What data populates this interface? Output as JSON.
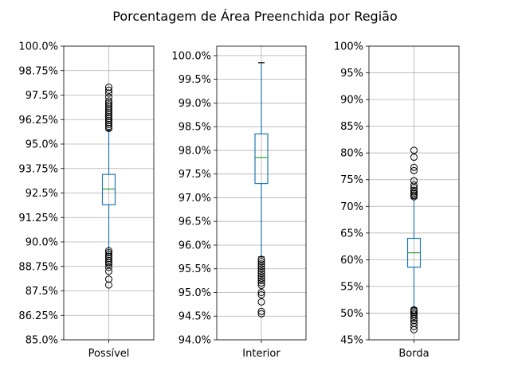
{
  "chart_data": {
    "title": "Porcentagem de Área Preenchida por Região",
    "colors": {
      "box": "#1f77b4",
      "median": "#2ca02c",
      "flier": "#000000",
      "grid": "#b0b0b0"
    },
    "grid": true,
    "panels": [
      {
        "type": "box",
        "category": "Possível",
        "ylim": [
          85.0,
          100.0
        ],
        "yticks": [
          85.0,
          86.25,
          87.5,
          88.75,
          90.0,
          91.25,
          92.5,
          93.75,
          95.0,
          96.25,
          97.5,
          98.75,
          100.0
        ],
        "yticklabels": [
          "85.0%",
          "86.25%",
          "87.5%",
          "88.75%",
          "90.0%",
          "91.25%",
          "92.5%",
          "93.75%",
          "95.0%",
          "96.25%",
          "97.5%",
          "98.75%",
          "100.0%"
        ],
        "whisker_low": 89.4,
        "q1": 91.9,
        "median": 92.7,
        "q3": 93.45,
        "whisker_high": 95.7,
        "fliers": [
          87.8,
          88.1,
          88.5,
          88.7,
          88.85,
          88.95,
          89.05,
          89.15,
          89.25,
          89.35,
          89.45,
          89.55,
          95.8,
          95.9,
          96.0,
          96.1,
          96.2,
          96.3,
          96.4,
          96.5,
          96.6,
          96.7,
          96.8,
          96.9,
          97.0,
          97.1,
          97.2,
          97.4,
          97.6,
          97.75,
          97.9
        ]
      },
      {
        "type": "box",
        "category": "Interior",
        "ylim": [
          94.0,
          100.2
        ],
        "yticks": [
          94.0,
          94.5,
          95.0,
          95.5,
          96.0,
          96.5,
          97.0,
          97.5,
          98.0,
          98.5,
          99.0,
          99.5,
          100.0
        ],
        "yticklabels": [
          "94.0%",
          "94.5%",
          "95.0%",
          "95.5%",
          "96.0%",
          "96.5%",
          "97.0%",
          "97.5%",
          "98.0%",
          "98.5%",
          "99.0%",
          "99.5%",
          "100.0%"
        ],
        "whisker_low": 95.75,
        "q1": 97.3,
        "median": 97.85,
        "q3": 98.35,
        "whisker_high": 99.85,
        "fliers": [
          94.55,
          94.6,
          94.8,
          94.95,
          95.0,
          95.15,
          95.2,
          95.25,
          95.3,
          95.35,
          95.4,
          95.45,
          95.5,
          95.55,
          95.6,
          95.65,
          95.7
        ]
      },
      {
        "type": "box",
        "category": "Borda",
        "ylim": [
          45,
          100
        ],
        "yticks": [
          45,
          50,
          55,
          60,
          65,
          70,
          75,
          80,
          85,
          90,
          95,
          100
        ],
        "yticklabels": [
          "45%",
          "50%",
          "55%",
          "60%",
          "65%",
          "70%",
          "75%",
          "80%",
          "85%",
          "90%",
          "95%",
          "100%"
        ],
        "whisker_low": 51.0,
        "q1": 58.6,
        "median": 61.3,
        "q3": 64.0,
        "whisker_high": 71.5,
        "fliers": [
          46.9,
          47.5,
          48.1,
          48.6,
          49.0,
          49.4,
          49.8,
          50.1,
          50.4,
          50.6,
          71.8,
          72.1,
          72.4,
          72.7,
          73.0,
          73.5,
          74.0,
          74.8,
          76.7,
          77.3,
          79.2,
          80.5
        ]
      }
    ]
  }
}
